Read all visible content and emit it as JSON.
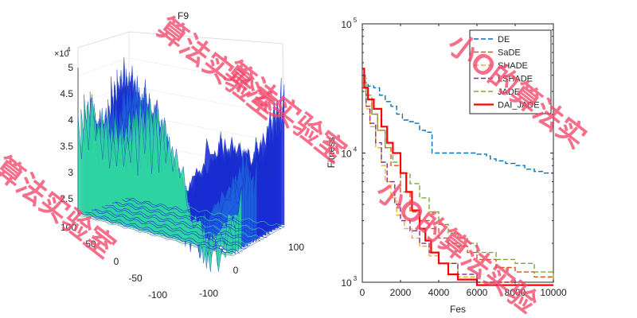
{
  "left_chart": {
    "type": "surface3d",
    "title": "F9",
    "z_exponent_prefix": "×10",
    "z_exponent": "4",
    "z_ticks": [
      "5",
      "4.5",
      "4",
      "3.5",
      "3",
      "2.5"
    ],
    "x_ticks": [
      "100",
      "0",
      "-100"
    ],
    "y_ticks": [
      "100",
      "50",
      "0",
      "-50",
      "-100"
    ],
    "colors": {
      "low": "#1a2bd6",
      "mid": "#1f5fe0",
      "high": "#2fd3a2"
    }
  },
  "chart_data": {
    "type": "line",
    "title": "",
    "xlabel": "Fes",
    "ylabel": "Fitness",
    "xlim": [
      0,
      10000
    ],
    "ylim": [
      1000,
      100000
    ],
    "yscale": "log",
    "x_ticks": [
      0,
      2000,
      4000,
      6000,
      8000,
      10000
    ],
    "x_tick_labels": [
      "0",
      "2000",
      "4000",
      "6000",
      "8000",
      "10000"
    ],
    "y_tick_base": "10",
    "y_tick_exponents": [
      "5",
      "4",
      "3"
    ],
    "legend_position": "top-right",
    "series": [
      {
        "name": "DE",
        "color": "#0072bd",
        "dash": "dash",
        "x": [
          0,
          150,
          300,
          600,
          900,
          1200,
          1500,
          1800,
          2100,
          2400,
          2700,
          3000,
          3300,
          3600,
          3650,
          4000,
          5000,
          6000,
          6500,
          6700,
          7000,
          7500,
          8000,
          8500,
          9000,
          9500,
          10000
        ],
        "y": [
          40000,
          35000,
          33000,
          32000,
          28000,
          25000,
          23000,
          20000,
          18000,
          17500,
          17000,
          15000,
          14500,
          14000,
          10000,
          10000,
          10000,
          9800,
          9500,
          9000,
          8700,
          8300,
          8000,
          7500,
          7200,
          7000,
          7000
        ]
      },
      {
        "name": "SaDE",
        "color": "#d95319",
        "dash": "dash",
        "x": [
          0,
          200,
          500,
          800,
          1200,
          1500,
          2000,
          2500,
          3000,
          3500,
          4000,
          4500,
          5000,
          5500,
          6000,
          7000,
          8000,
          9000,
          10000
        ],
        "y": [
          35000,
          26000,
          20000,
          15000,
          11000,
          8000,
          5000,
          3500,
          3000,
          2600,
          2200,
          2000,
          1900,
          1700,
          1500,
          1300,
          1200,
          1100,
          1000
        ]
      },
      {
        "name": "SHADE",
        "color": "#edb120",
        "dash": "dash",
        "x": [
          0,
          200,
          400,
          700,
          1000,
          1200,
          1500,
          1800,
          2200,
          2600,
          3000,
          3500,
          4000,
          5000,
          6000,
          8000,
          10000
        ],
        "y": [
          30000,
          22000,
          16000,
          11000,
          8000,
          6000,
          4500,
          3300,
          2600,
          2200,
          1900,
          1600,
          1400,
          1100,
          1000,
          950,
          950
        ]
      },
      {
        "name": "LSHADE",
        "color": "#7e2f8e",
        "dash": "dash",
        "x": [
          0,
          200,
          400,
          700,
          1000,
          1300,
          1700,
          2000,
          2500,
          3000,
          3500,
          4000,
          5000,
          6000,
          8000,
          10000
        ],
        "y": [
          32000,
          23000,
          17000,
          12000,
          8500,
          6000,
          4000,
          3000,
          2500,
          2000,
          1700,
          1400,
          1150,
          1000,
          950,
          950
        ]
      },
      {
        "name": "JADE",
        "color": "#77ac30",
        "dash": "dash",
        "x": [
          0,
          200,
          500,
          800,
          1200,
          1600,
          2000,
          2500,
          3000,
          3500,
          4000,
          4500,
          5000,
          5500,
          6000,
          7000,
          8000,
          9000,
          10000
        ],
        "y": [
          38000,
          28000,
          20000,
          15000,
          11000,
          8500,
          7000,
          5800,
          4500,
          3500,
          2800,
          2400,
          2200,
          2000,
          1700,
          1500,
          1400,
          1200,
          1050
        ]
      },
      {
        "name": "DAI_JADE",
        "color": "#ff0000",
        "dash": "solid",
        "x": [
          0,
          100,
          300,
          600,
          1000,
          1300,
          1600,
          2000,
          2300,
          2600,
          3000,
          3300,
          3600,
          4000,
          4500,
          5000,
          6000,
          7000,
          8000,
          9000,
          10000
        ],
        "y": [
          45000,
          32000,
          26000,
          22000,
          16000,
          12000,
          10000,
          7000,
          5000,
          3600,
          2600,
          2100,
          1700,
          1400,
          1150,
          1050,
          950,
          950,
          950,
          950,
          950
        ]
      }
    ]
  },
  "watermarks": [
    "算法实验室",
    "算法实验室",
    "小O的算法实",
    "小O的算法实验",
    "算法实验室"
  ]
}
